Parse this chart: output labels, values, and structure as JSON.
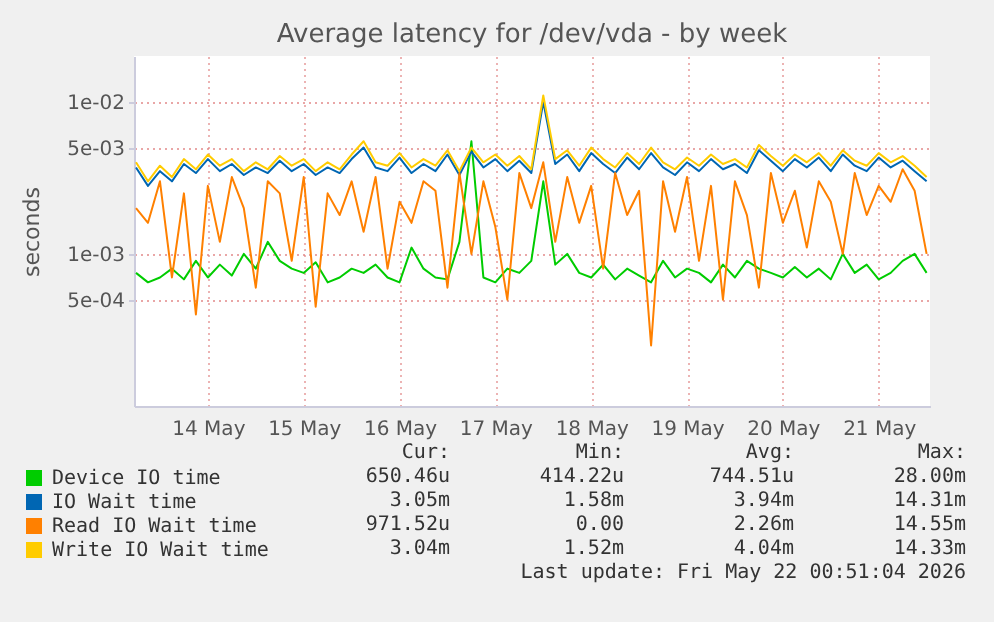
{
  "chart_data": {
    "type": "line",
    "title": "Average latency for /dev/vda - by week",
    "ylabel": "seconds",
    "log": "y",
    "grid": true,
    "legend": "bottom left",
    "marker": "none",
    "line_style": "solid",
    "xlim": [
      "2026-05-13T17:30",
      "2026-05-22T00:51"
    ],
    "xticks": [
      {
        "value": "2026-05-14T12:00",
        "label": "14 May"
      },
      {
        "value": "2026-05-15T12:00",
        "label": "15 May"
      },
      {
        "value": "2026-05-16T12:00",
        "label": "16 May"
      },
      {
        "value": "2026-05-17T12:00",
        "label": "17 May"
      },
      {
        "value": "2026-05-18T12:00",
        "label": "18 May"
      },
      {
        "value": "2026-05-19T12:00",
        "label": "19 May"
      },
      {
        "value": "2026-05-20T12:00",
        "label": "20 May"
      },
      {
        "value": "2026-05-21T12:00",
        "label": "21 May"
      }
    ],
    "ylim": [
      0.0001,
      0.02
    ],
    "yticks": [
      {
        "value": 0.0005,
        "label": "5e-04"
      },
      {
        "value": 0.001,
        "label": "1e-03"
      },
      {
        "value": 0.005,
        "label": "5e-03"
      },
      {
        "value": 0.01,
        "label": "1e-02"
      }
    ],
    "x": [
      "2026-05-13T18:00",
      "2026-05-13T21:00",
      "2026-05-14T00:00",
      "2026-05-14T03:00",
      "2026-05-14T06:00",
      "2026-05-14T09:00",
      "2026-05-14T12:00",
      "2026-05-14T15:00",
      "2026-05-14T18:00",
      "2026-05-14T21:00",
      "2026-05-15T00:00",
      "2026-05-15T03:00",
      "2026-05-15T06:00",
      "2026-05-15T09:00",
      "2026-05-15T12:00",
      "2026-05-15T15:00",
      "2026-05-15T18:00",
      "2026-05-15T21:00",
      "2026-05-16T00:00",
      "2026-05-16T03:00",
      "2026-05-16T06:00",
      "2026-05-16T09:00",
      "2026-05-16T12:00",
      "2026-05-16T15:00",
      "2026-05-16T18:00",
      "2026-05-16T21:00",
      "2026-05-17T00:00",
      "2026-05-17T03:00",
      "2026-05-17T06:00",
      "2026-05-17T09:00",
      "2026-05-17T12:00",
      "2026-05-17T15:00",
      "2026-05-17T18:00",
      "2026-05-17T21:00",
      "2026-05-18T00:00",
      "2026-05-18T03:00",
      "2026-05-18T06:00",
      "2026-05-18T09:00",
      "2026-05-18T12:00",
      "2026-05-18T15:00",
      "2026-05-18T18:00",
      "2026-05-18T21:00",
      "2026-05-19T00:00",
      "2026-05-19T03:00",
      "2026-05-19T06:00",
      "2026-05-19T09:00",
      "2026-05-19T12:00",
      "2026-05-19T15:00",
      "2026-05-19T18:00",
      "2026-05-19T21:00",
      "2026-05-20T00:00",
      "2026-05-20T03:00",
      "2026-05-20T06:00",
      "2026-05-20T09:00",
      "2026-05-20T12:00",
      "2026-05-20T15:00",
      "2026-05-20T18:00",
      "2026-05-20T21:00",
      "2026-05-21T00:00",
      "2026-05-21T03:00",
      "2026-05-21T06:00",
      "2026-05-21T09:00",
      "2026-05-21T12:00",
      "2026-05-21T15:00",
      "2026-05-21T18:00",
      "2026-05-21T21:00",
      "2026-05-22T00:00"
    ],
    "series": [
      {
        "name": "Device IO time",
        "color": "#00cc00",
        "values": [
          0.00075,
          0.00065,
          0.0007,
          0.0008,
          0.00068,
          0.0009,
          0.0007,
          0.00085,
          0.00072,
          0.001,
          0.0008,
          0.0012,
          0.0009,
          0.0008,
          0.00075,
          0.00088,
          0.00065,
          0.0007,
          0.0008,
          0.00075,
          0.00085,
          0.0007,
          0.00065,
          0.0011,
          0.0008,
          0.0007,
          0.00068,
          0.0012,
          0.0055,
          0.0007,
          0.00065,
          0.0008,
          0.00075,
          0.0009,
          0.003,
          0.00085,
          0.001,
          0.00075,
          0.0007,
          0.00085,
          0.00068,
          0.0008,
          0.00072,
          0.00065,
          0.0009,
          0.0007,
          0.0008,
          0.00075,
          0.00065,
          0.00085,
          0.0007,
          0.0009,
          0.0008,
          0.00075,
          0.0007,
          0.00082,
          0.0007,
          0.0008,
          0.00068,
          0.001,
          0.00075,
          0.00085,
          0.00068,
          0.00075,
          0.0009,
          0.001,
          0.00075
        ]
      },
      {
        "name": "IO Wait time",
        "color": "#0066b3",
        "values": [
          0.0037,
          0.0028,
          0.0035,
          0.003,
          0.0039,
          0.0034,
          0.0042,
          0.0035,
          0.0039,
          0.0033,
          0.0037,
          0.0034,
          0.0041,
          0.0035,
          0.0039,
          0.0033,
          0.0037,
          0.0034,
          0.0042,
          0.005,
          0.0037,
          0.0035,
          0.0043,
          0.0034,
          0.0039,
          0.0035,
          0.0045,
          0.0033,
          0.0047,
          0.0037,
          0.0042,
          0.0035,
          0.0041,
          0.0034,
          0.01,
          0.0039,
          0.0045,
          0.0035,
          0.0046,
          0.0039,
          0.0034,
          0.0043,
          0.0036,
          0.0046,
          0.0037,
          0.0033,
          0.004,
          0.0035,
          0.0042,
          0.0036,
          0.0039,
          0.0034,
          0.0048,
          0.0041,
          0.0035,
          0.0042,
          0.0037,
          0.0043,
          0.0035,
          0.0045,
          0.0038,
          0.0035,
          0.0043,
          0.0037,
          0.0041,
          0.0035,
          0.003
        ]
      },
      {
        "name": "Read IO Wait time",
        "color": "#ff8000",
        "values": [
          0.002,
          0.0016,
          0.003,
          0.0007,
          0.0025,
          0.0004,
          0.0028,
          0.0012,
          0.0032,
          0.002,
          0.0006,
          0.003,
          0.0025,
          0.0009,
          0.0032,
          0.00045,
          0.0025,
          0.0018,
          0.003,
          0.0014,
          0.0032,
          0.0008,
          0.0022,
          0.0016,
          0.003,
          0.0026,
          0.0006,
          0.0034,
          0.001,
          0.003,
          0.0015,
          0.0005,
          0.0034,
          0.002,
          0.004,
          0.0012,
          0.0032,
          0.0016,
          0.0028,
          0.0008,
          0.0034,
          0.0018,
          0.0026,
          0.00025,
          0.003,
          0.0014,
          0.0032,
          0.0009,
          0.0028,
          0.0005,
          0.003,
          0.0018,
          0.0006,
          0.0034,
          0.0016,
          0.0026,
          0.0011,
          0.003,
          0.0022,
          0.001,
          0.0034,
          0.0018,
          0.0028,
          0.0022,
          0.0036,
          0.0026,
          0.001
        ]
      },
      {
        "name": "Write IO Wait time",
        "color": "#ffcc00",
        "values": [
          0.004,
          0.003,
          0.0038,
          0.0032,
          0.0042,
          0.0036,
          0.0045,
          0.0038,
          0.0042,
          0.0035,
          0.004,
          0.0036,
          0.0044,
          0.0038,
          0.0042,
          0.0035,
          0.004,
          0.0036,
          0.0045,
          0.0055,
          0.004,
          0.0038,
          0.0046,
          0.0037,
          0.0042,
          0.0038,
          0.0048,
          0.0035,
          0.005,
          0.004,
          0.0045,
          0.0038,
          0.0044,
          0.0036,
          0.011,
          0.0042,
          0.0048,
          0.0038,
          0.005,
          0.0042,
          0.0037,
          0.0046,
          0.0039,
          0.005,
          0.004,
          0.0036,
          0.0043,
          0.0038,
          0.0045,
          0.0039,
          0.0042,
          0.0037,
          0.0052,
          0.0044,
          0.0038,
          0.0045,
          0.004,
          0.0046,
          0.0038,
          0.0048,
          0.0041,
          0.0038,
          0.0046,
          0.004,
          0.0044,
          0.0038,
          0.0032
        ]
      }
    ],
    "annotations": [
      "Cur:",
      "Min:",
      "Avg:",
      "Max:",
      "650.46u",
      "414.22u",
      "744.51u",
      "28.00m",
      "3.05m",
      "1.58m",
      "3.94m",
      "14.31m",
      "971.52u",
      "0.00",
      "2.26m",
      "14.55m",
      "3.04m",
      "1.52m",
      "4.04m",
      "14.33m",
      "Last update: Fri May 22 00:51:04 2026"
    ]
  }
}
